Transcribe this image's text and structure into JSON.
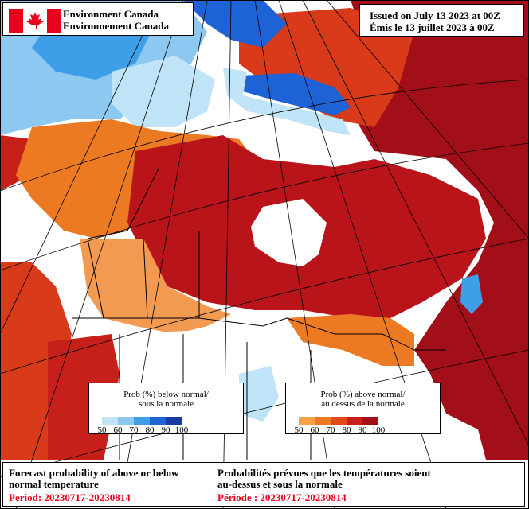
{
  "header": {
    "org_en": "Environment Canada",
    "org_fr": "Environnement Canada",
    "issued_en": "Issued on July 13 2023 at 00Z",
    "issued_fr": "Émis le 13 juillet 2023 à 00Z"
  },
  "legend_below": {
    "title_line1": "Prob (%) below normal/",
    "title_line2": "sous la normale",
    "ticks": [
      "50",
      "60",
      "70",
      "80",
      "90",
      "100"
    ],
    "colors": [
      "#bfe3f7",
      "#8cc8f0",
      "#3f9ee8",
      "#1e63d6",
      "#1a3aa6"
    ]
  },
  "legend_above": {
    "title_line1": "Prob (%) above normal/",
    "title_line2": "au dessus de la normale",
    "ticks": [
      "50",
      "60",
      "70",
      "80",
      "90",
      "100"
    ],
    "colors": [
      "#f6a04a",
      "#ec7a22",
      "#df4a17",
      "#c7201b",
      "#a30f18"
    ]
  },
  "footer": {
    "title_en_line1": "Forecast probability of above or below",
    "title_en_line2": "normal temperature",
    "period_en": "Period: 20230717-20230814",
    "title_fr_line1": "Probabilités prévues que les températures soient",
    "title_fr_line2": "au-dessus et sous la normale",
    "period_fr": "Période : 20230717-20230814"
  },
  "map_colors": {
    "ocean": "#ffffff",
    "normal": "#ffffff",
    "above_dark": "#a30f18",
    "above_red": "#c7201b",
    "above_mid": "#df4a17",
    "above_orange": "#ec7a22",
    "above_light": "#f6a04a",
    "below_light": "#bfe3f7",
    "below_mid": "#3f9ee8",
    "below_dark": "#1e63d6",
    "lines": "#000000"
  }
}
